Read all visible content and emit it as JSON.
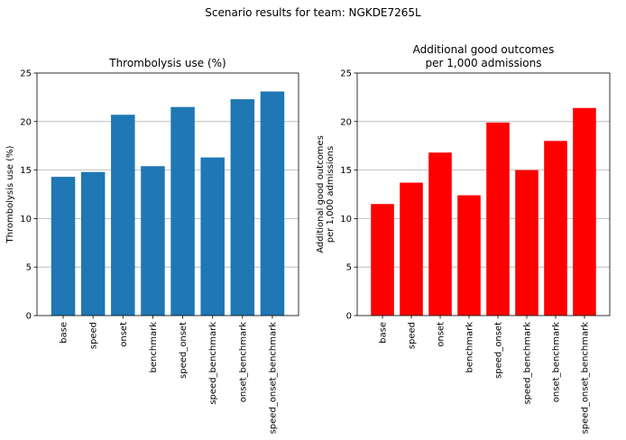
{
  "suptitle": "Scenario results for team: NGKDE7265L",
  "chart_data": [
    {
      "type": "bar",
      "title": "Thrombolysis use (%)",
      "xlabel": "",
      "ylabel": "Thrombolysis use (%)",
      "categories": [
        "base",
        "speed",
        "onset",
        "benchmark",
        "speed_onset",
        "speed_benchmark",
        "onset_benchmark",
        "speed_onset_benchmark"
      ],
      "values": [
        14.3,
        14.8,
        20.7,
        15.4,
        21.5,
        16.3,
        22.3,
        23.1
      ],
      "ylim": [
        0,
        25
      ],
      "yticks": [
        0,
        5,
        10,
        15,
        20,
        25
      ],
      "grid": "y",
      "bar_color": "#1f77b4"
    },
    {
      "type": "bar",
      "title": "Additional good outcomes\nper 1,000 admissions",
      "xlabel": "",
      "ylabel": "Additional good outcomes\nper 1,000 admissions",
      "categories": [
        "base",
        "speed",
        "onset",
        "benchmark",
        "speed_onset",
        "speed_benchmark",
        "onset_benchmark",
        "speed_onset_benchmark"
      ],
      "values": [
        11.5,
        13.7,
        16.8,
        12.4,
        19.9,
        15.0,
        18.0,
        21.4
      ],
      "ylim": [
        0,
        25
      ],
      "yticks": [
        0,
        5,
        10,
        15,
        20,
        25
      ],
      "grid": "y",
      "bar_color": "#ff0000"
    }
  ]
}
